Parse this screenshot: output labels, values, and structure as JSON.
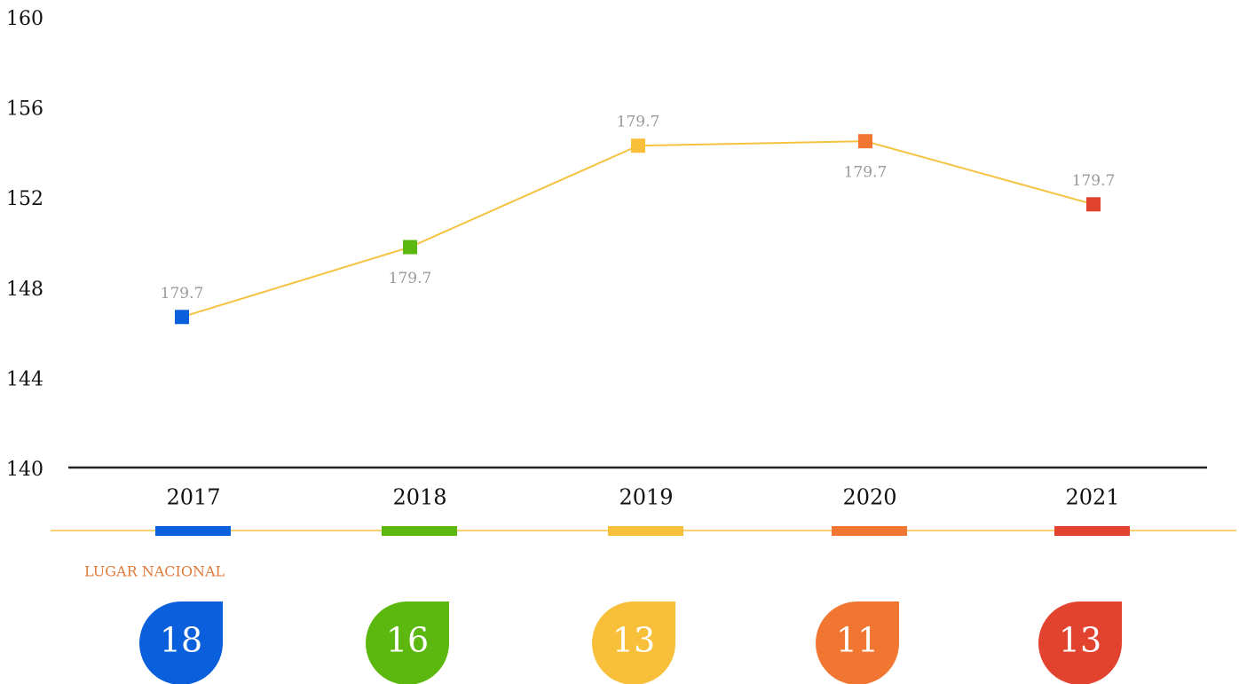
{
  "chart_data": {
    "type": "line",
    "categories": [
      "2017",
      "2018",
      "2019",
      "2020",
      "2021"
    ],
    "values": [
      146.8,
      149.9,
      154.4,
      154.6,
      151.8
    ],
    "annotations": [
      "179.7",
      "179.7",
      "179.7",
      "179.7",
      "179.7"
    ],
    "line_color": "#f5c342",
    "colors": [
      "#0a5fdc",
      "#5cb80f",
      "#f8c03a",
      "#f07632",
      "#e2432f"
    ],
    "ylim": [
      140,
      160
    ],
    "yticks": [
      140,
      144,
      148,
      152,
      156,
      160
    ]
  },
  "ranking": {
    "title": "LUGAR NACIONAL",
    "values": [
      18,
      16,
      13,
      11,
      13
    ]
  }
}
